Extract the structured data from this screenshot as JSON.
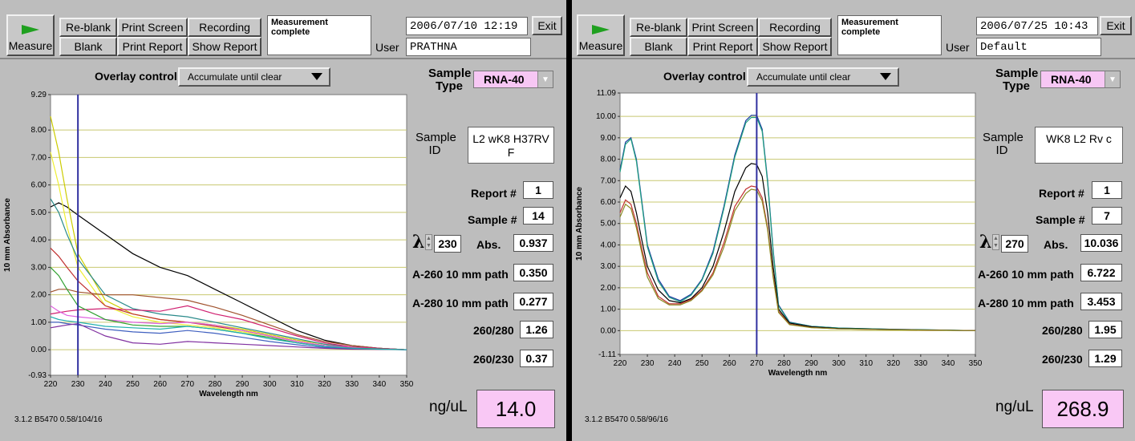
{
  "panels": [
    {
      "toolbar": {
        "measure_label": "Measure",
        "reblank": "Re-blank",
        "print_screen": "Print Screen",
        "recording": "Recording",
        "blank": "Blank",
        "print_report": "Print Report",
        "show_report": "Show Report",
        "message": "Measurement complete",
        "datetime": "2006/07/10  12:19",
        "exit": "Exit",
        "user_label": "User",
        "user": "PRATHNA"
      },
      "overlay": {
        "label": "Overlay control",
        "value": "Accumulate until clear"
      },
      "side": {
        "sample_type_label": "Sample Type",
        "sample_type": "RNA-40",
        "sample_id_label": "Sample ID",
        "sample_id": "L2 wK8 H37RV F",
        "report_label": "Report #",
        "report": "1",
        "sample_num_label": "Sample #",
        "sample_num": "14",
        "lambda_symbol": "λ",
        "lambda": "230",
        "abs_label": "Abs.",
        "abs": "0.937",
        "a260_label": "A-260 10 mm path",
        "a260": "0.350",
        "a280_label": "A-280 10 mm path",
        "a280": "0.277",
        "r260_280_label": "260/280",
        "r260_280": "1.26",
        "r260_230_label": "260/230",
        "r260_230": "0.37",
        "ng_label": "ng/uL",
        "ng": "14.0"
      },
      "footer": "3.1.2 B5470 0.58/104/16"
    },
    {
      "toolbar": {
        "measure_label": "Measure",
        "reblank": "Re-blank",
        "print_screen": "Print Screen",
        "recording": "Recording",
        "blank": "Blank",
        "print_report": "Print Report",
        "show_report": "Show Report",
        "message": "Measurement complete",
        "datetime": "2006/07/25  10:43",
        "exit": "Exit",
        "user_label": "User",
        "user": "Default"
      },
      "overlay": {
        "label": "Overlay control",
        "value": "Accumulate until clear"
      },
      "side": {
        "sample_type_label": "Sample Type",
        "sample_type": "RNA-40",
        "sample_id_label": "Sample ID",
        "sample_id": "WK8 L2 Rv c",
        "report_label": "Report #",
        "report": "1",
        "sample_num_label": "Sample #",
        "sample_num": "7",
        "lambda_symbol": "λ",
        "lambda": "270",
        "abs_label": "Abs.",
        "abs": "10.036",
        "a260_label": "A-260 10 mm path",
        "a260": "6.722",
        "a280_label": "A-280 10 mm path",
        "a280": "3.453",
        "r260_280_label": "260/280",
        "r260_280": "1.95",
        "r260_230_label": "260/230",
        "r260_230": "1.29",
        "ng_label": "ng/uL",
        "ng": "268.9"
      },
      "footer": "3.1.2 B5470 0.58/96/16"
    }
  ],
  "chart_data": [
    {
      "type": "line",
      "xlabel": "Wavelength nm",
      "ylabel": "10 mm Absorbance",
      "xlim": [
        220,
        350
      ],
      "ylim": [
        -0.93,
        9.29
      ],
      "xticks": [
        "220",
        "230",
        "240",
        "250",
        "260",
        "270",
        "280",
        "290",
        "300",
        "310",
        "320",
        "330",
        "340",
        "350"
      ],
      "yticks": [
        "9.29",
        "8.00",
        "7.00",
        "6.00",
        "5.00",
        "4.00",
        "3.00",
        "2.00",
        "1.00",
        "0.00",
        "-0.93"
      ],
      "cursor_x": 230,
      "series": [
        {
          "color": "#000000",
          "x": [
            220,
            223,
            226,
            230,
            240,
            250,
            260,
            270,
            280,
            290,
            300,
            310,
            320,
            330,
            340,
            350
          ],
          "y": [
            5.2,
            5.35,
            5.2,
            4.9,
            4.2,
            3.5,
            3.0,
            2.7,
            2.2,
            1.7,
            1.2,
            0.7,
            0.35,
            0.15,
            0.05,
            0.0
          ]
        },
        {
          "color": "#cccc00",
          "x": [
            220,
            223,
            226,
            230,
            240,
            250,
            260,
            270,
            280,
            290,
            300,
            310,
            320,
            330,
            340,
            350
          ],
          "y": [
            8.5,
            7.2,
            5.5,
            3.5,
            1.8,
            1.3,
            1.1,
            1.0,
            0.9,
            0.75,
            0.55,
            0.35,
            0.2,
            0.1,
            0.05,
            0.0
          ]
        },
        {
          "color": "#eeee33",
          "x": [
            220,
            223,
            226,
            230,
            240,
            250,
            260,
            270,
            280,
            290,
            300,
            310,
            320,
            330,
            340,
            350
          ],
          "y": [
            7.2,
            6.0,
            4.5,
            3.0,
            1.6,
            1.2,
            1.0,
            0.9,
            0.8,
            0.65,
            0.5,
            0.3,
            0.15,
            0.08,
            0.04,
            0.0
          ]
        },
        {
          "color": "#2a8a8a",
          "x": [
            220,
            223,
            226,
            230,
            240,
            250,
            260,
            270,
            280,
            290,
            300,
            310,
            320,
            330,
            340,
            350
          ],
          "y": [
            5.5,
            5.0,
            4.2,
            3.3,
            2.0,
            1.5,
            1.3,
            1.2,
            1.0,
            0.8,
            0.6,
            0.4,
            0.2,
            0.1,
            0.05,
            0.0
          ]
        },
        {
          "color": "#c03030",
          "x": [
            220,
            223,
            226,
            230,
            240,
            250,
            260,
            270,
            280,
            290,
            300,
            310,
            320,
            330,
            340,
            350
          ],
          "y": [
            3.7,
            3.4,
            3.0,
            2.5,
            1.6,
            1.3,
            1.1,
            1.0,
            0.85,
            0.7,
            0.5,
            0.3,
            0.15,
            0.08,
            0.03,
            0.0
          ]
        },
        {
          "color": "#a0522d",
          "x": [
            220,
            223,
            226,
            230,
            240,
            250,
            260,
            270,
            280,
            290,
            300,
            310,
            320,
            330,
            340,
            350
          ],
          "y": [
            2.1,
            2.2,
            2.2,
            2.1,
            2.0,
            2.0,
            1.9,
            1.8,
            1.55,
            1.25,
            0.9,
            0.55,
            0.3,
            0.15,
            0.05,
            0.0
          ]
        },
        {
          "color": "#d02070",
          "x": [
            220,
            223,
            226,
            230,
            240,
            250,
            260,
            270,
            280,
            290,
            300,
            310,
            320,
            330,
            340,
            350
          ],
          "y": [
            1.3,
            1.35,
            1.4,
            1.45,
            1.5,
            1.45,
            1.4,
            1.6,
            1.3,
            1.1,
            0.8,
            0.5,
            0.25,
            0.1,
            0.05,
            0.0
          ]
        },
        {
          "color": "#e060e0",
          "x": [
            220,
            223,
            226,
            230,
            240,
            250,
            260,
            270,
            280,
            290,
            300,
            310,
            320,
            330,
            340,
            350
          ],
          "y": [
            1.6,
            1.4,
            1.25,
            1.2,
            1.1,
            1.0,
            0.95,
            1.0,
            0.9,
            0.7,
            0.5,
            0.3,
            0.15,
            0.08,
            0.03,
            0.0
          ]
        },
        {
          "color": "#30a030",
          "x": [
            220,
            223,
            226,
            230,
            240,
            250,
            260,
            270,
            280,
            290,
            300,
            310,
            320,
            330,
            340,
            350
          ],
          "y": [
            3.0,
            2.7,
            2.2,
            1.6,
            1.1,
            0.9,
            0.85,
            0.85,
            0.75,
            0.6,
            0.45,
            0.25,
            0.12,
            0.06,
            0.03,
            0.0
          ]
        },
        {
          "color": "#4060c0",
          "x": [
            220,
            223,
            226,
            230,
            240,
            250,
            260,
            270,
            280,
            290,
            300,
            310,
            320,
            330,
            340,
            350
          ],
          "y": [
            1.0,
            1.0,
            0.95,
            0.9,
            0.75,
            0.65,
            0.6,
            0.7,
            0.6,
            0.45,
            0.3,
            0.18,
            0.08,
            0.04,
            0.02,
            0.0
          ]
        },
        {
          "color": "#8030a0",
          "x": [
            220,
            223,
            226,
            230,
            240,
            250,
            260,
            270,
            280,
            290,
            300,
            310,
            320,
            330,
            340,
            350
          ],
          "y": [
            0.8,
            0.85,
            0.9,
            0.95,
            0.5,
            0.25,
            0.2,
            0.3,
            0.25,
            0.2,
            0.15,
            0.1,
            0.05,
            0.02,
            0.01,
            0.0
          ]
        },
        {
          "color": "#20b0b0",
          "x": [
            220,
            223,
            226,
            230,
            240,
            250,
            260,
            270,
            280,
            290,
            300,
            310,
            320,
            330,
            340,
            350
          ],
          "y": [
            1.2,
            1.1,
            1.05,
            1.0,
            0.85,
            0.8,
            0.75,
            0.85,
            0.75,
            0.6,
            0.4,
            0.25,
            0.12,
            0.05,
            0.02,
            0.0
          ]
        }
      ]
    },
    {
      "type": "line",
      "xlabel": "Wavelength nm",
      "ylabel": "10 mm Absorbance",
      "xlim": [
        220,
        350
      ],
      "ylim": [
        -1.11,
        11.09
      ],
      "xticks": [
        "220",
        "230",
        "240",
        "250",
        "260",
        "270",
        "280",
        "290",
        "300",
        "310",
        "320",
        "330",
        "340",
        "350"
      ],
      "yticks": [
        "11.09",
        "10.00",
        "9.00",
        "8.00",
        "7.00",
        "6.00",
        "5.00",
        "4.00",
        "3.00",
        "2.00",
        "1.00",
        "0.00",
        "-1.11"
      ],
      "cursor_x": 270,
      "series": [
        {
          "color": "#1a3aa0",
          "x": [
            220,
            222,
            224,
            226,
            228,
            230,
            234,
            238,
            242,
            246,
            250,
            254,
            258,
            262,
            266,
            268,
            270,
            272,
            274,
            276,
            278,
            282,
            290,
            300,
            320,
            350
          ],
          "y": [
            7.5,
            8.8,
            9.0,
            8.0,
            6.0,
            4.0,
            2.4,
            1.6,
            1.4,
            1.7,
            2.4,
            3.7,
            5.8,
            8.2,
            9.8,
            10.05,
            10.05,
            9.4,
            7.0,
            3.8,
            1.2,
            0.4,
            0.2,
            0.12,
            0.06,
            0.0
          ]
        },
        {
          "color": "#20a080",
          "x": [
            220,
            222,
            224,
            226,
            228,
            230,
            234,
            238,
            242,
            246,
            250,
            254,
            258,
            262,
            266,
            268,
            270,
            272,
            274,
            276,
            278,
            282,
            290,
            300,
            320,
            350
          ],
          "y": [
            7.4,
            8.7,
            8.95,
            7.9,
            5.9,
            3.9,
            2.3,
            1.55,
            1.35,
            1.65,
            2.35,
            3.6,
            5.7,
            8.1,
            9.7,
            9.95,
            9.95,
            9.3,
            6.9,
            3.7,
            1.15,
            0.38,
            0.2,
            0.12,
            0.06,
            0.0
          ]
        },
        {
          "color": "#000000",
          "x": [
            220,
            222,
            224,
            226,
            228,
            230,
            234,
            238,
            242,
            246,
            250,
            254,
            258,
            262,
            266,
            268,
            270,
            272,
            274,
            276,
            278,
            282,
            290,
            300,
            320,
            350
          ],
          "y": [
            6.2,
            6.75,
            6.5,
            5.5,
            4.2,
            3.0,
            1.9,
            1.4,
            1.3,
            1.5,
            2.0,
            3.0,
            4.6,
            6.5,
            7.6,
            7.8,
            7.75,
            7.2,
            5.5,
            3.0,
            1.0,
            0.35,
            0.18,
            0.1,
            0.05,
            0.0
          ]
        },
        {
          "color": "#c03030",
          "x": [
            220,
            222,
            224,
            226,
            228,
            230,
            234,
            238,
            242,
            246,
            250,
            254,
            258,
            262,
            266,
            268,
            270,
            272,
            274,
            276,
            278,
            282,
            290,
            300,
            320,
            350
          ],
          "y": [
            5.5,
            6.1,
            5.9,
            5.0,
            3.8,
            2.7,
            1.6,
            1.25,
            1.25,
            1.45,
            1.9,
            2.7,
            4.1,
            5.8,
            6.6,
            6.75,
            6.7,
            6.2,
            4.8,
            2.6,
            0.9,
            0.3,
            0.15,
            0.08,
            0.04,
            0.0
          ]
        },
        {
          "color": "#8a8a20",
          "x": [
            220,
            222,
            224,
            226,
            228,
            230,
            234,
            238,
            242,
            246,
            250,
            254,
            258,
            262,
            266,
            268,
            270,
            272,
            274,
            276,
            278,
            282,
            290,
            300,
            320,
            350
          ],
          "y": [
            5.3,
            5.9,
            5.7,
            4.8,
            3.6,
            2.5,
            1.5,
            1.2,
            1.2,
            1.4,
            1.85,
            2.6,
            3.9,
            5.6,
            6.4,
            6.6,
            6.55,
            6.05,
            4.7,
            2.5,
            0.85,
            0.28,
            0.14,
            0.08,
            0.04,
            0.0
          ]
        }
      ]
    }
  ]
}
